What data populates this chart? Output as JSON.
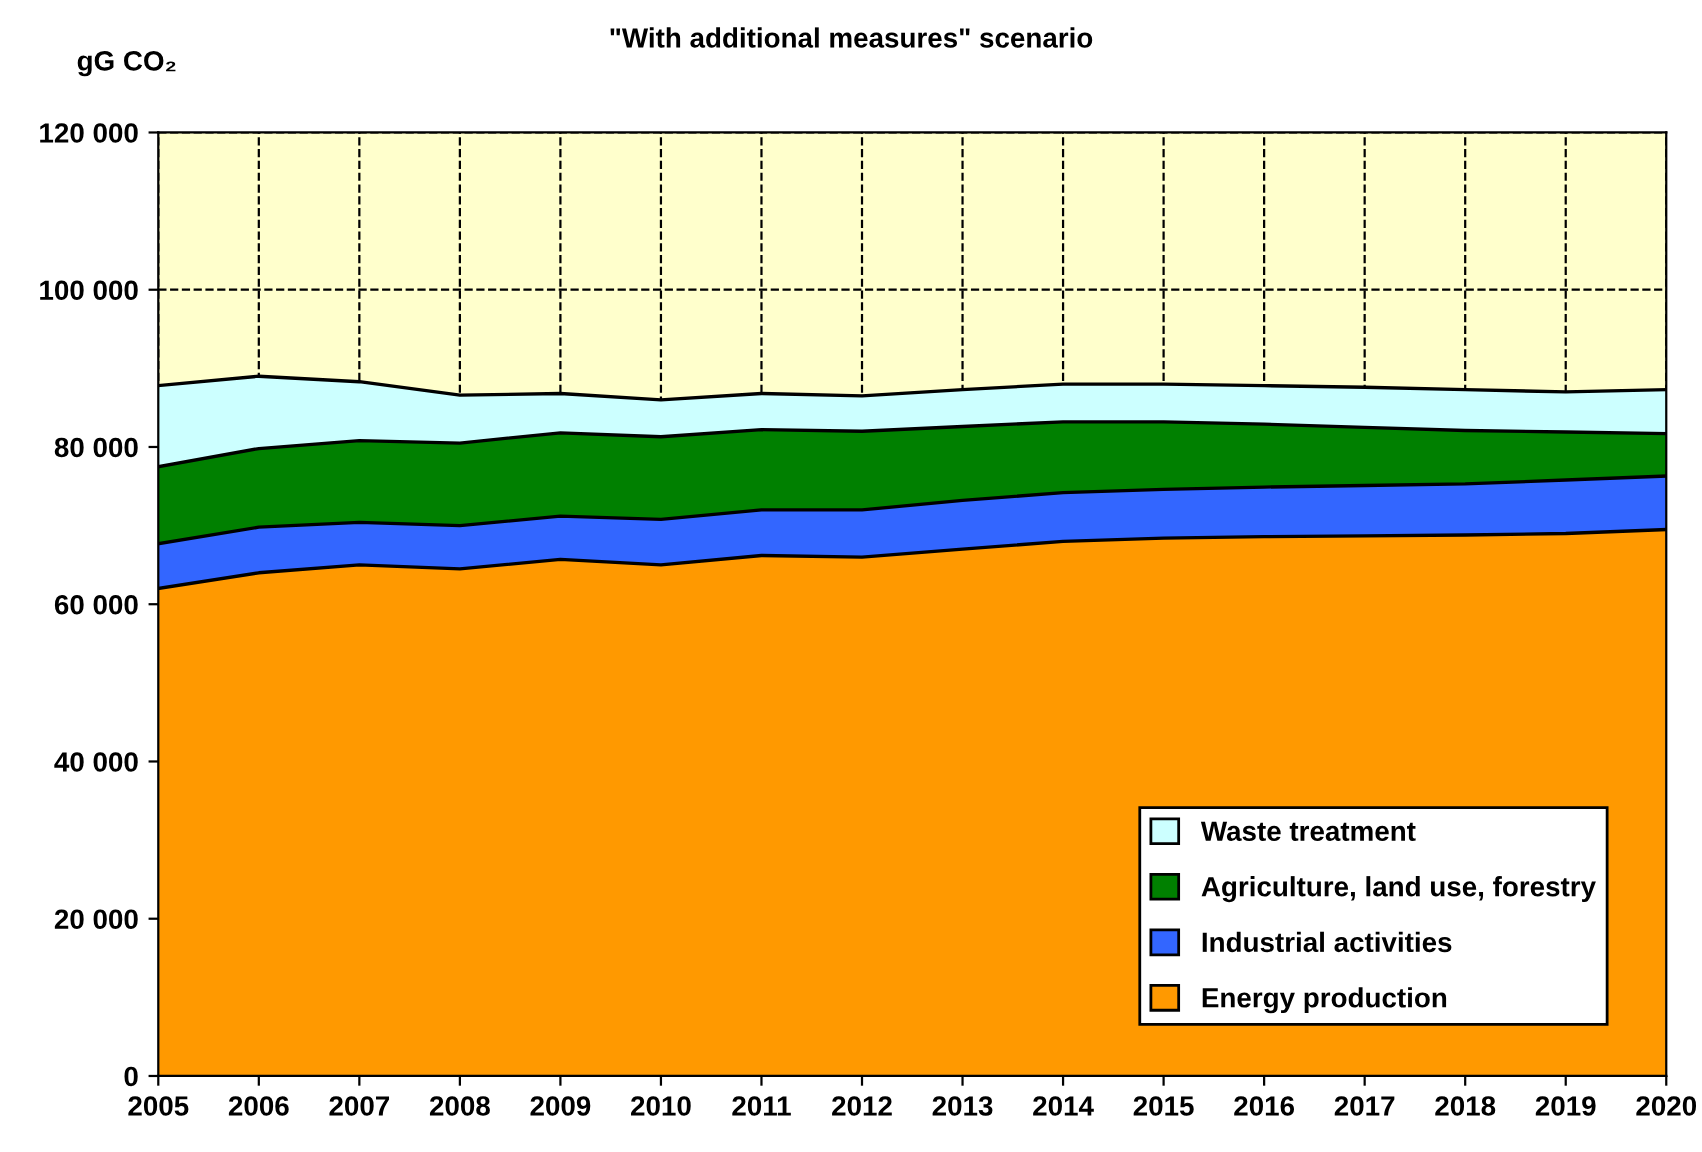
{
  "chart_data": {
    "type": "area",
    "stacked": true,
    "title": "\"With additional measures\" scenario",
    "ylabel": "gG CO₂",
    "x": [
      2005,
      2006,
      2007,
      2008,
      2009,
      2010,
      2011,
      2012,
      2013,
      2014,
      2015,
      2016,
      2017,
      2018,
      2019,
      2020
    ],
    "series": [
      {
        "name": "Energy production",
        "color": "#ff9900",
        "values": [
          62000,
          64000,
          65000,
          64500,
          65700,
          65000,
          66200,
          66000,
          67000,
          68000,
          68400,
          68600,
          68700,
          68800,
          69000,
          69500
        ]
      },
      {
        "name": "Industrial activities",
        "color": "#3366ff",
        "values": [
          5700,
          5800,
          5400,
          5500,
          5500,
          5800,
          5800,
          6000,
          6200,
          6200,
          6200,
          6300,
          6400,
          6500,
          6800,
          6800
        ]
      },
      {
        "name": "Agriculture, land use, forestry",
        "color": "#008000",
        "values": [
          9800,
          10000,
          10400,
          10500,
          10600,
          10500,
          10200,
          10000,
          9400,
          9000,
          8600,
          8000,
          7400,
          6800,
          6100,
          5400
        ]
      },
      {
        "name": "Waste treatment",
        "color": "#ccffff",
        "values": [
          10300,
          9200,
          7500,
          6100,
          5000,
          4700,
          4600,
          4500,
          4700,
          4800,
          4800,
          4900,
          5100,
          5200,
          5100,
          5600
        ]
      }
    ],
    "xlim": [
      2005,
      2020
    ],
    "xticks": [
      2005,
      2006,
      2007,
      2008,
      2009,
      2010,
      2011,
      2012,
      2013,
      2014,
      2015,
      2016,
      2017,
      2018,
      2019,
      2020
    ],
    "ylim": [
      0,
      120000
    ],
    "yticks": [
      {
        "value": 0,
        "label": "0"
      },
      {
        "value": 20000,
        "label": "20 000"
      },
      {
        "value": 40000,
        "label": "40 000"
      },
      {
        "value": 60000,
        "label": "60 000"
      },
      {
        "value": 80000,
        "label": "80 000"
      },
      {
        "value": 100000,
        "label": "100 000"
      },
      {
        "value": 120000,
        "label": "120 000"
      }
    ],
    "bands": [
      {
        "axis": "y",
        "from": 86000,
        "to": 120000,
        "color": "#ffffcc"
      }
    ],
    "grid": true,
    "line_style": "dashed",
    "legend": "bottom right"
  }
}
